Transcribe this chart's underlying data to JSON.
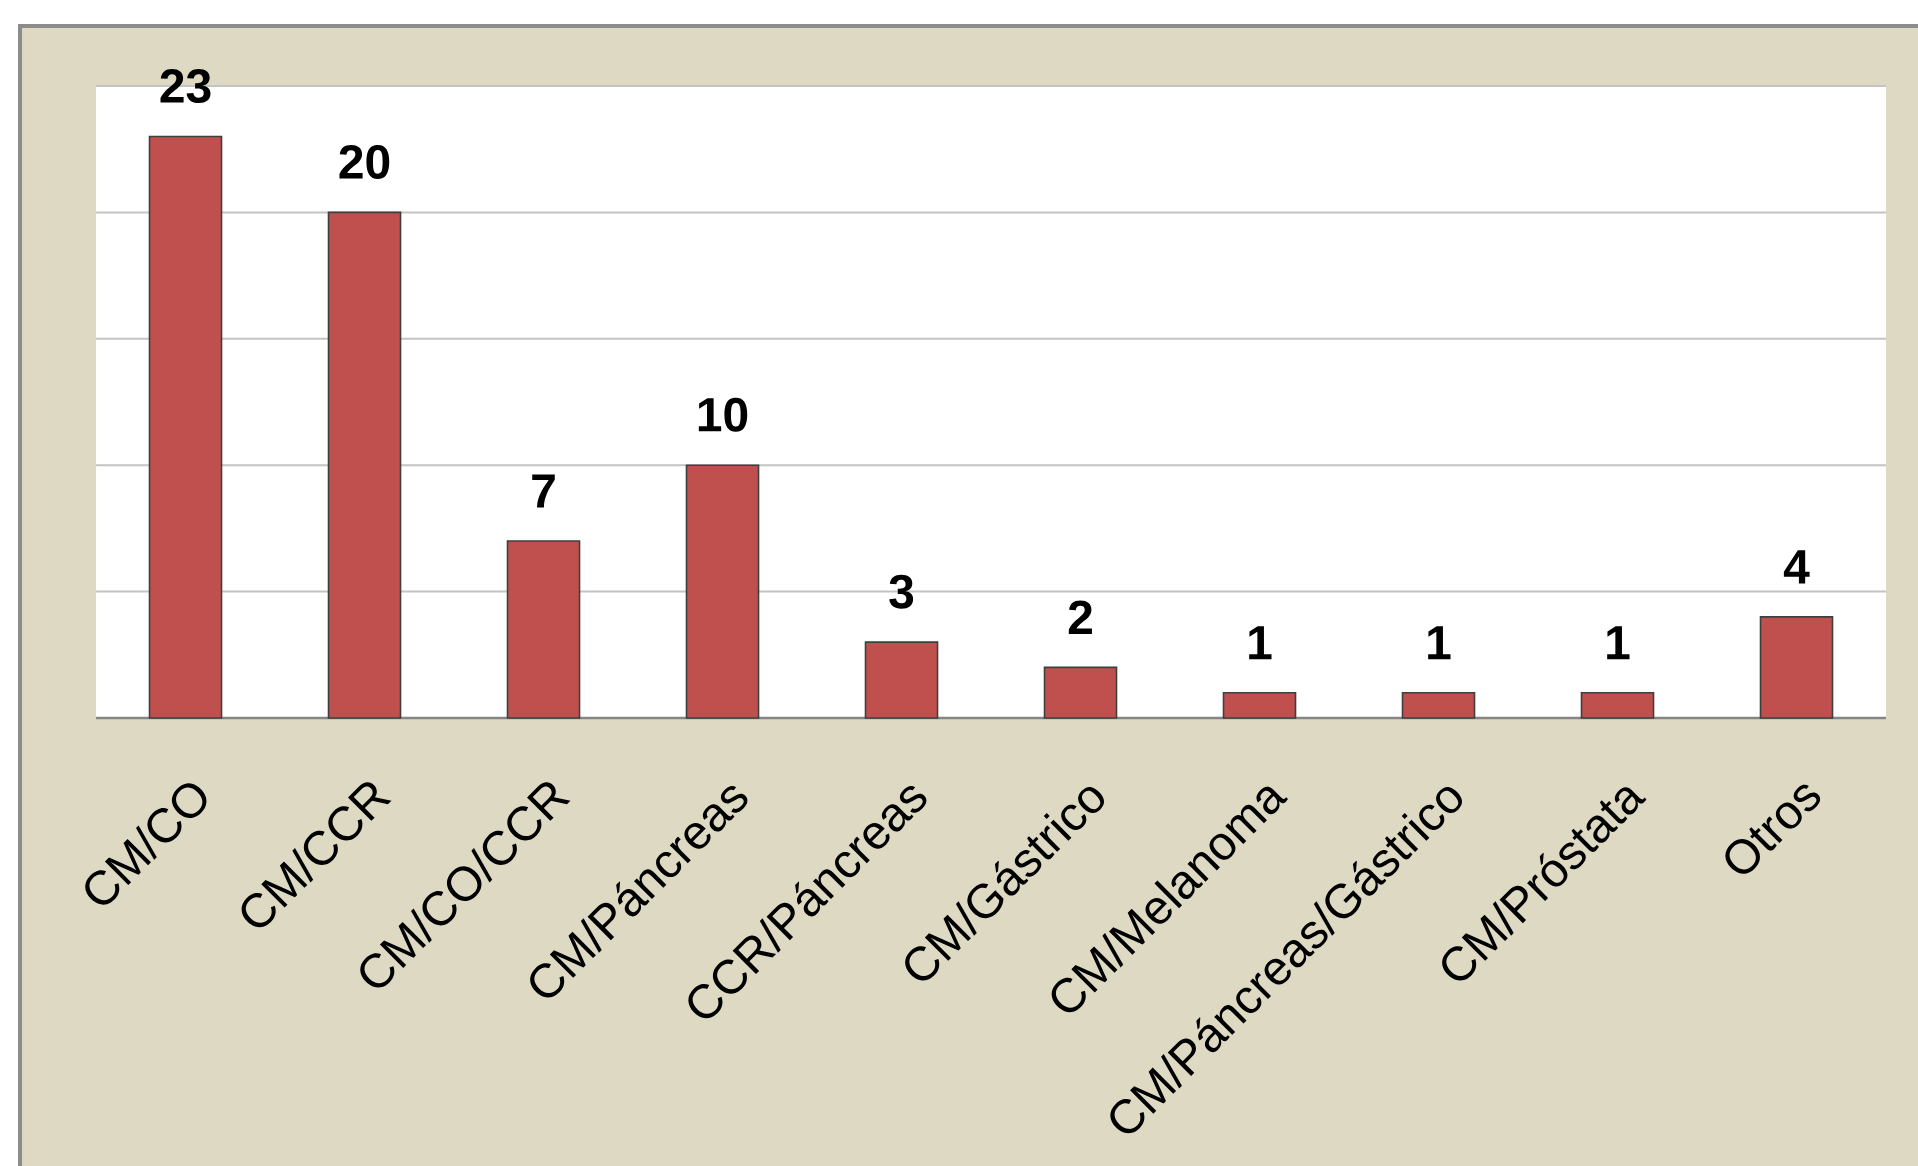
{
  "chart_data": {
    "type": "bar",
    "categories": [
      "CM/CO",
      "CM/CCR",
      "CM/CO/CCR",
      "CM/Páncreas",
      "CCR/Páncreas",
      "CM/Gástrico",
      "CM/Melanoma",
      "CM/Páncreas/Gástrico",
      "CM/Próstata",
      "Otros"
    ],
    "values": [
      23,
      20,
      7,
      10,
      3,
      2,
      1,
      1,
      1,
      4
    ],
    "color": "#c0504d",
    "ylim": [
      0,
      25
    ],
    "yticks": [
      {
        "value": 0,
        "label": null
      },
      {
        "value": 5,
        "label": null
      },
      {
        "value": 10,
        "label": null
      },
      {
        "value": 15,
        "label": null
      },
      {
        "value": 20,
        "label": null
      },
      {
        "value": 25,
        "label": null
      }
    ],
    "tick_labels": "x",
    "grid": "y",
    "data_labels": true
  }
}
